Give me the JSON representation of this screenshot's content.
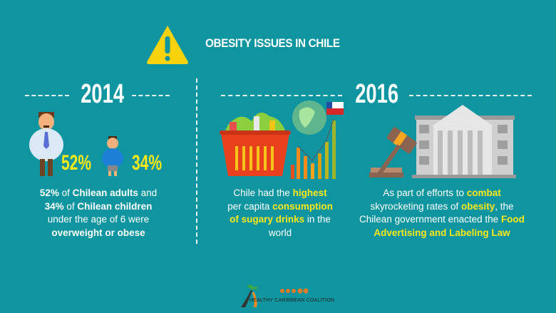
{
  "header": {
    "title": "OBESITY ISSUES IN CHILE",
    "icon": "warning-icon"
  },
  "left": {
    "year": "2014",
    "adults_pct": "52%",
    "children_pct": "34%",
    "para": {
      "s1": "52%",
      "s2": " of ",
      "s3": "Chilean adults",
      "s4": " and",
      "s5": "34%",
      "s6": " of ",
      "s7": "Chilean children",
      "s8": "under the age of 6 were",
      "s9": "overweight or obese"
    }
  },
  "right": {
    "year": "2016",
    "para1": {
      "s1": "Chile had the ",
      "s2": "highest",
      "s3": "per capita ",
      "s4": "consumption",
      "s5": "of sugary drinks",
      "s6": " in the",
      "s7": "world"
    },
    "para2": {
      "s1": "As part of efforts to ",
      "s2": "combat",
      "s3": "skyrocketing rates of ",
      "s4": "obesity",
      "s5": ", the",
      "s6": "Chilean government enacted the ",
      "s7": "Food",
      "s8": "Advertising and Labeling Law"
    }
  },
  "footer": {
    "logo_text": "HEALTHY CARIBBEAN COALITION"
  },
  "colors": {
    "background": "#0f95a0",
    "highlight": "#fde81a"
  }
}
